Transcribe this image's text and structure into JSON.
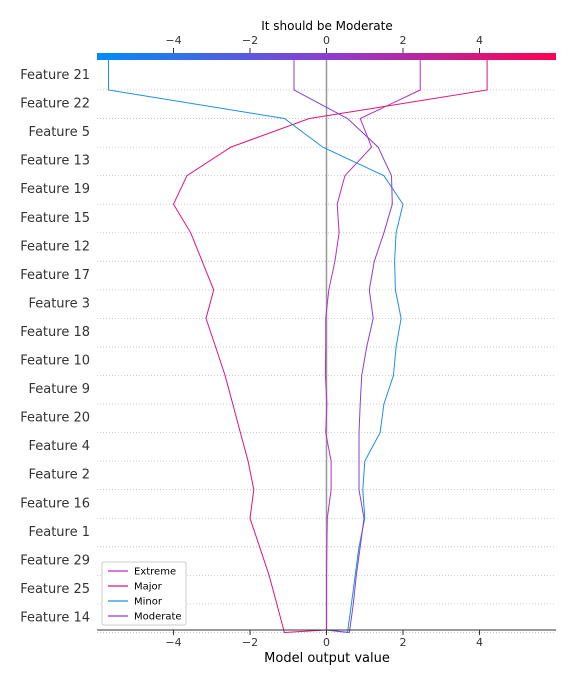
{
  "chart_data": {
    "type": "line",
    "title": "It should be Moderate",
    "xlabel": "Model output value",
    "xlim": [
      -6.0,
      6.0
    ],
    "x_ticks": [
      -4,
      -2,
      0,
      2,
      4
    ],
    "x_tick_labels": [
      "−4",
      "−2",
      "0",
      "2",
      "4"
    ],
    "base_value": 0,
    "colorbar": {
      "stops": [
        "#008bfb",
        "#8a3fd0",
        "#ff0052"
      ]
    },
    "grid": "horizontal dotted",
    "legend_position": "lower-left",
    "features": [
      "Feature 21",
      "Feature 22",
      "Feature 5",
      "Feature 13",
      "Feature 19",
      "Feature 15",
      "Feature 12",
      "Feature 17",
      "Feature 3",
      "Feature 18",
      "Feature 10",
      "Feature 9",
      "Feature 20",
      "Feature 4",
      "Feature 2",
      "Feature 16",
      "Feature 1",
      "Feature 29",
      "Feature 25",
      "Feature 14"
    ],
    "series": [
      {
        "name": "Extreme",
        "color": "#b52fc2",
        "values": [
          2.45,
          0.88,
          1.18,
          0.48,
          0.28,
          0.33,
          0.22,
          0.06,
          -0.02,
          -0.02,
          -0.03,
          0.01,
          -0.02,
          0.12,
          0.12,
          0.02,
          0.01,
          0.0,
          0.0,
          0.0
        ]
      },
      {
        "name": "Major",
        "color": "#e0137a",
        "values": [
          4.2,
          -0.45,
          -2.5,
          -3.65,
          -4.0,
          -3.55,
          -3.25,
          -2.95,
          -3.15,
          -2.9,
          -2.65,
          -2.45,
          -2.25,
          -2.05,
          -1.9,
          -2.0,
          -1.75,
          -1.5,
          -1.3,
          -1.1
        ]
      },
      {
        "name": "Minor",
        "color": "#1f8fe0",
        "values": [
          -5.7,
          -1.1,
          -0.1,
          1.5,
          2.0,
          1.82,
          1.78,
          1.8,
          1.95,
          1.82,
          1.75,
          1.5,
          1.4,
          1.0,
          0.95,
          1.0,
          0.85,
          0.75,
          0.65,
          0.55
        ]
      },
      {
        "name": "Moderate",
        "color": "#8a3fd0",
        "values": [
          -0.85,
          0.55,
          1.35,
          1.7,
          1.72,
          1.5,
          1.25,
          1.12,
          1.22,
          1.05,
          0.92,
          0.88,
          0.85,
          0.85,
          0.85,
          0.98,
          0.88,
          0.78,
          0.7,
          0.6
        ]
      }
    ]
  }
}
